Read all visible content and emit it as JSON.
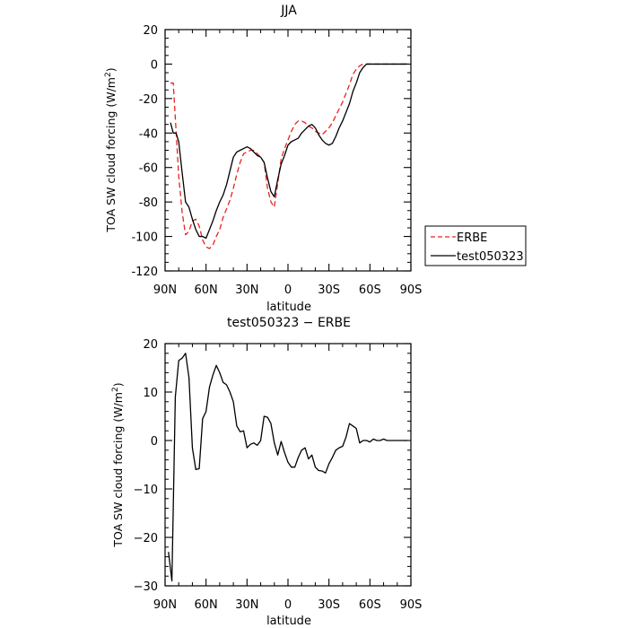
{
  "chart_data": [
    {
      "type": "line",
      "title": "JJA",
      "xlabel": "latitude",
      "ylabel": "TOA SW cloud forcing (W/m",
      "ylabel_sup": "2",
      "ylabel_tail": ")",
      "xlim": [
        90,
        -90
      ],
      "ylim": [
        -120,
        20
      ],
      "xticks": [
        90,
        60,
        30,
        0,
        -30,
        -60,
        -90
      ],
      "xtick_labels": [
        "90N",
        "60N",
        "30N",
        "0",
        "30S",
        "60S",
        "90S"
      ],
      "yticks": [
        -120,
        -100,
        -80,
        -60,
        -40,
        -20,
        0,
        20
      ],
      "ytick_labels": [
        "-120",
        "-100",
        "-80",
        "-60",
        "-40",
        "-20",
        "0",
        "20"
      ],
      "legend": "outside-right",
      "series": [
        {
          "name": "ERBE",
          "color": "#e8231e",
          "dash": "dashed",
          "x": [
            86,
            84,
            82,
            80,
            77.5,
            75,
            72.5,
            70,
            67.5,
            65,
            62.5,
            60,
            57.5,
            55,
            52.5,
            50,
            47.5,
            45,
            42.5,
            40,
            37.5,
            35,
            32.5,
            30,
            27.5,
            25,
            22.5,
            20,
            17.5,
            15,
            12.5,
            10,
            7.5,
            5,
            2.5,
            0,
            -2.5,
            -5,
            -7.5,
            -10,
            -12.5,
            -15,
            -17.5,
            -20,
            -22.5,
            -25,
            -27.5,
            -30,
            -32.5,
            -35,
            -37.5,
            -40,
            -42.5,
            -45,
            -47.5,
            -50,
            -52.5,
            -55,
            -57.5,
            -60,
            -62.5,
            -65,
            -67.5,
            -70,
            -72.5,
            -75,
            -77.5,
            -80,
            -82.5,
            -85,
            -87.5
          ],
          "y": [
            -11,
            -11,
            -38,
            -65,
            -86,
            -99,
            -97,
            -91,
            -90,
            -94,
            -102,
            -106,
            -107,
            -105,
            -100,
            -96,
            -89,
            -84,
            -79,
            -72,
            -64,
            -57,
            -52,
            -51,
            -50,
            -50,
            -52,
            -54,
            -57,
            -72,
            -80,
            -83,
            -69,
            -55,
            -49,
            -44,
            -39,
            -35,
            -33,
            -33,
            -34,
            -36,
            -37,
            -39,
            -40,
            -41,
            -39,
            -37,
            -34,
            -30,
            -26,
            -22,
            -17,
            -12,
            -6,
            -3,
            -1,
            0,
            0,
            0,
            0,
            0,
            0,
            0,
            0,
            0,
            0,
            0,
            0,
            0,
            0
          ]
        },
        {
          "name": "test050323",
          "color": "#000000",
          "dash": "solid",
          "x": [
            86,
            84,
            82,
            80,
            77.5,
            75,
            72.5,
            70,
            67.5,
            65,
            62.5,
            60,
            57.5,
            55,
            52.5,
            50,
            47.5,
            45,
            42.5,
            40,
            37.5,
            35,
            32.5,
            30,
            27.5,
            25,
            22.5,
            20,
            17.5,
            15,
            12.5,
            10,
            7.5,
            5,
            2.5,
            0,
            -2.5,
            -5,
            -7.5,
            -10,
            -12.5,
            -15,
            -17.5,
            -20,
            -22.5,
            -25,
            -27.5,
            -30,
            -32.5,
            -35,
            -37.5,
            -40,
            -42.5,
            -45,
            -47.5,
            -50,
            -52.5,
            -55,
            -57.5,
            -60,
            -62.5,
            -65,
            -67.5,
            -70,
            -72.5,
            -75,
            -77.5,
            -80,
            -82.5,
            -85,
            -87.5
          ],
          "y": [
            -34,
            -40,
            -40,
            -45,
            -63,
            -80,
            -83,
            -90,
            -96,
            -100,
            -100,
            -101,
            -96,
            -91,
            -85,
            -80,
            -76,
            -70,
            -62,
            -54,
            -51,
            -50,
            -49,
            -48,
            -49,
            -51,
            -53,
            -54,
            -57,
            -66,
            -74,
            -77,
            -67,
            -58,
            -53,
            -47,
            -45,
            -44,
            -43,
            -40,
            -38,
            -36,
            -35,
            -37,
            -41,
            -44,
            -46,
            -47,
            -46,
            -42,
            -37,
            -33,
            -28,
            -23,
            -16,
            -11,
            -5,
            -2,
            0,
            0,
            0,
            0,
            0,
            0,
            0,
            0,
            0,
            0,
            0,
            0,
            0
          ]
        }
      ]
    },
    {
      "type": "line",
      "title": "test050323 − ERBE",
      "xlabel": "latitude",
      "ylabel": "TOA SW cloud forcing (W/m",
      "ylabel_sup": "2",
      "ylabel_tail": ")",
      "xlim": [
        90,
        -90
      ],
      "ylim": [
        -30,
        20
      ],
      "xticks": [
        90,
        60,
        30,
        0,
        -30,
        -60,
        -90
      ],
      "xtick_labels": [
        "90N",
        "60N",
        "30N",
        "0",
        "30S",
        "60S",
        "90S"
      ],
      "yticks": [
        -30,
        -20,
        -10,
        0,
        10,
        20
      ],
      "ytick_labels": [
        "−30",
        "−20",
        "−10",
        "0",
        "10",
        "20"
      ],
      "series": [
        {
          "color": "#000000",
          "dash": "solid",
          "x": [
            87.5,
            85,
            82.5,
            80,
            77.5,
            75,
            72.5,
            70,
            67.5,
            65,
            62.5,
            60,
            57.5,
            55,
            52.5,
            50,
            47.5,
            45,
            42.5,
            40,
            37.5,
            35,
            32.5,
            30,
            27.5,
            25,
            22.5,
            20,
            17.5,
            15,
            12.5,
            10,
            7.5,
            5,
            2.5,
            0,
            -2.5,
            -5,
            -7.5,
            -10,
            -12.5,
            -15,
            -17.5,
            -20,
            -22.5,
            -25,
            -27.5,
            -30,
            -32.5,
            -35,
            -37.5,
            -40,
            -42.5,
            -45,
            -47.5,
            -50,
            -52.5,
            -55,
            -57.5,
            -60,
            -62.5,
            -65,
            -67.5,
            -70,
            -72.5,
            -75,
            -77.5,
            -80,
            -82.5,
            -85,
            -87.5
          ],
          "y": [
            -23,
            -29,
            9,
            16.5,
            17,
            18,
            13,
            -1.5,
            -6,
            -5.8,
            4.5,
            6,
            11,
            13.5,
            15.5,
            14,
            12,
            11.5,
            10,
            8,
            3,
            1.8,
            2,
            -1.5,
            -0.8,
            -0.5,
            -1,
            0,
            5,
            4.8,
            3.5,
            -0.5,
            -3,
            -0.2,
            -2.5,
            -4.5,
            -5.5,
            -5.5,
            -3.5,
            -2,
            -1.5,
            -3.8,
            -3,
            -5.5,
            -6.2,
            -6.3,
            -6.7,
            -4.8,
            -3.5,
            -2,
            -1.5,
            -1.2,
            0.7,
            3.5,
            3,
            2.5,
            -0.5,
            0,
            0,
            -0.3,
            0.3,
            0,
            0,
            0.3,
            0,
            0,
            0,
            0,
            0,
            0,
            0
          ]
        }
      ]
    }
  ]
}
